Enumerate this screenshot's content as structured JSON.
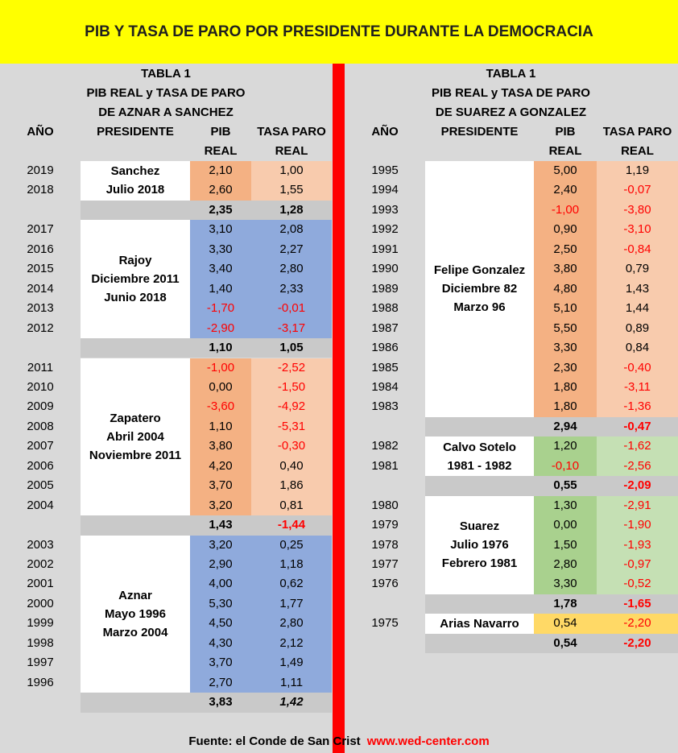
{
  "title": "PIB Y TASA DE PARO POR PRESIDENTE DURANTE LA DEMOCRACIA",
  "colors": {
    "title_bg": "#ffff00",
    "divider": "#ff0000",
    "page_bg": "#d9d9d9",
    "orange": "#f4b183",
    "orange_light": "#f8cbad",
    "blue": "#8faadc",
    "green": "#a9d18e",
    "green_light": "#c5e0b4",
    "yellow": "#ffd966",
    "total_bg": "#c9c9c9",
    "negative": "#ff0000"
  },
  "left": {
    "header": [
      "TABLA 1",
      "PIB REAL y TASA DE PARO",
      "DE AZNAR A SANCHEZ"
    ],
    "columns": {
      "year": "AÑO",
      "president": "PRESIDENTE",
      "pib1": "PIB",
      "pib2": "REAL",
      "paro1": "TASA PARO",
      "paro2": "REAL"
    },
    "rows": [
      {
        "year": "2019",
        "pib": "2,10",
        "paro": "1,00"
      },
      {
        "year": "2018",
        "pib": "2,60",
        "paro": "1,55"
      },
      {
        "year": "",
        "pib": "2,35",
        "paro": "1,28"
      },
      {
        "year": "2017",
        "pib": "3,10",
        "paro": "2,08"
      },
      {
        "year": "2016",
        "pib": "3,30",
        "paro": "2,27"
      },
      {
        "year": "2015",
        "pib": "3,40",
        "paro": "2,80"
      },
      {
        "year": "2014",
        "pib": "1,40",
        "paro": "2,33"
      },
      {
        "year": "2013",
        "pib": "-1,70",
        "paro": "-0,01"
      },
      {
        "year": "2012",
        "pib": "-2,90",
        "paro": "-3,17"
      },
      {
        "year": "",
        "pib": "1,10",
        "paro": "1,05"
      },
      {
        "year": "2011",
        "pib": "-1,00",
        "paro": "-2,52"
      },
      {
        "year": "2010",
        "pib": "0,00",
        "paro": "-1,50"
      },
      {
        "year": "2009",
        "pib": "-3,60",
        "paro": "-4,92"
      },
      {
        "year": "2008",
        "pib": "1,10",
        "paro": "-5,31"
      },
      {
        "year": "2007",
        "pib": "3,80",
        "paro": "-0,30"
      },
      {
        "year": "2006",
        "pib": "4,20",
        "paro": "0,40"
      },
      {
        "year": "2005",
        "pib": "3,70",
        "paro": "1,86"
      },
      {
        "year": "2004",
        "pib": "3,20",
        "paro": "0,81"
      },
      {
        "year": "",
        "pib": "1,43",
        "paro": "-1,44"
      },
      {
        "year": "2003",
        "pib": "3,20",
        "paro": "0,25"
      },
      {
        "year": "2002",
        "pib": "2,90",
        "paro": "1,18"
      },
      {
        "year": "2001",
        "pib": "4,00",
        "paro": "0,62"
      },
      {
        "year": "2000",
        "pib": "5,30",
        "paro": "1,77"
      },
      {
        "year": "1999",
        "pib": "4,50",
        "paro": "2,80"
      },
      {
        "year": "1998",
        "pib": "4,30",
        "paro": "2,12"
      },
      {
        "year": "1997",
        "pib": "3,70",
        "paro": "1,49"
      },
      {
        "year": "1996",
        "pib": "2,70",
        "paro": "1,11"
      },
      {
        "year": "",
        "pib": "3,83",
        "paro": "1,42"
      }
    ],
    "presidents": [
      {
        "lines": [
          "Sanchez",
          "Julio 2018"
        ]
      },
      {
        "lines": [
          "Rajoy",
          "Diciembre 2011",
          "Junio 2018"
        ]
      },
      {
        "lines": [
          "Zapatero",
          "Abril 2004",
          "Noviembre 2011"
        ]
      },
      {
        "lines": [
          "Aznar",
          "Mayo 1996",
          "Marzo 2004"
        ]
      }
    ]
  },
  "right": {
    "header": [
      "TABLA 1",
      "PIB REAL y TASA DE PARO",
      "DE SUAREZ A GONZALEZ"
    ],
    "columns": {
      "year": "AÑO",
      "president": "PRESIDENTE",
      "pib1": "PIB",
      "pib2": "REAL",
      "paro1": "TASA PARO",
      "paro2": "REAL"
    },
    "rows": [
      {
        "year": "1995",
        "pib": "5,00",
        "paro": "1,19"
      },
      {
        "year": "1994",
        "pib": "2,40",
        "paro": "-0,07"
      },
      {
        "year": "1993",
        "pib": "-1,00",
        "paro": "-3,80"
      },
      {
        "year": "1992",
        "pib": "0,90",
        "paro": "-3,10"
      },
      {
        "year": "1991",
        "pib": "2,50",
        "paro": "-0,84"
      },
      {
        "year": "1990",
        "pib": "3,80",
        "paro": "0,79"
      },
      {
        "year": "1989",
        "pib": "4,80",
        "paro": "1,43"
      },
      {
        "year": "1988",
        "pib": "5,10",
        "paro": "1,44"
      },
      {
        "year": "1987",
        "pib": "5,50",
        "paro": "0,89"
      },
      {
        "year": "1986",
        "pib": "3,30",
        "paro": "0,84"
      },
      {
        "year": "1985",
        "pib": "2,30",
        "paro": "-0,40"
      },
      {
        "year": "1984",
        "pib": "1,80",
        "paro": "-3,11"
      },
      {
        "year": "1983",
        "pib": "1,80",
        "paro": "-1,36"
      },
      {
        "year": "",
        "pib": "2,94",
        "paro": "-0,47"
      },
      {
        "year": "1982",
        "pib": "1,20",
        "paro": "-1,62"
      },
      {
        "year": "1981",
        "pib": "-0,10",
        "paro": "-2,56"
      },
      {
        "year": "",
        "pib": "0,55",
        "paro": "-2,09"
      },
      {
        "year": "1980",
        "pib": "1,30",
        "paro": "-2,91"
      },
      {
        "year": "1979",
        "pib": "0,00",
        "paro": "-1,90"
      },
      {
        "year": "1978",
        "pib": "1,50",
        "paro": "-1,93"
      },
      {
        "year": "1977",
        "pib": "2,80",
        "paro": "-0,97"
      },
      {
        "year": "1976",
        "pib": "3,30",
        "paro": "-0,52"
      },
      {
        "year": "",
        "pib": "1,78",
        "paro": "-1,65"
      },
      {
        "year": "1975",
        "pib": "0,54",
        "paro": "-2,20"
      },
      {
        "year": "",
        "pib": "0,54",
        "paro": "-2,20"
      }
    ],
    "presidents": [
      {
        "lines": [
          "Felipe Gonzalez",
          "Diciembre 82",
          "Marzo 96"
        ]
      },
      {
        "lines": [
          "Calvo Sotelo",
          "1981 - 1982"
        ]
      },
      {
        "lines": [
          "Suarez",
          "Julio 1976",
          "Febrero 1981"
        ]
      },
      {
        "lines": [
          "Arias Navarro"
        ]
      }
    ]
  },
  "source": {
    "text": "Fuente: el Conde de San Crist",
    "web": "www.wed-center.com"
  }
}
